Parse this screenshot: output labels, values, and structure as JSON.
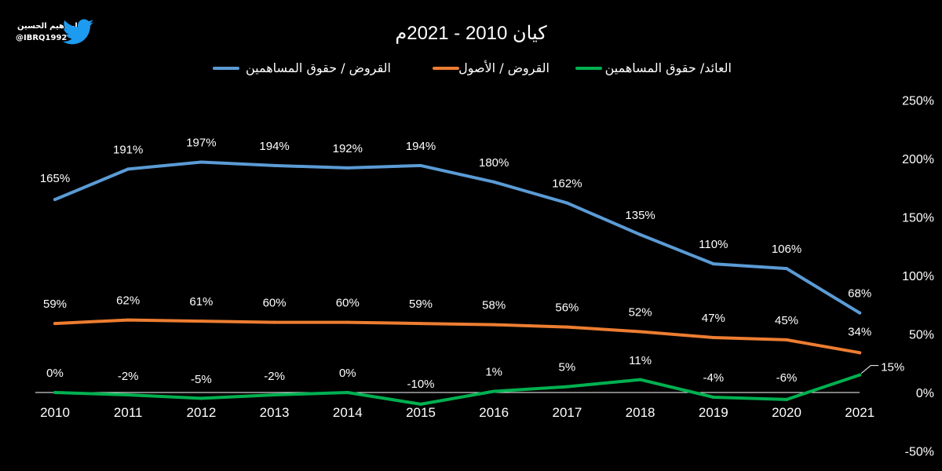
{
  "branding": {
    "author_name": "إبراهيم الحسين",
    "handle": "@IBRQ1992",
    "logo_icon": "twitter-bird-icon",
    "logo_color": "#1d9bf0"
  },
  "chart_data": {
    "type": "line",
    "title": "كيان 2010 - 2021م",
    "background": "#000000",
    "categories": [
      "2010",
      "2011",
      "2012",
      "2013",
      "2014",
      "2015",
      "2016",
      "2017",
      "2018",
      "2019",
      "2020",
      "2021"
    ],
    "y_axis": {
      "side": "right",
      "min": -50,
      "max": 250,
      "step": 50,
      "tick_labels": [
        "-50%",
        "0%",
        "50%",
        "100%",
        "150%",
        "200%",
        "250%"
      ]
    },
    "grid": false,
    "legend": {
      "position": "top"
    },
    "series": [
      {
        "name": "القروض / حقوق المساهمين",
        "color": "#5b9bd5",
        "values": [
          165,
          191,
          197,
          194,
          192,
          194,
          180,
          162,
          135,
          110,
          106,
          68
        ],
        "labels": [
          "165%",
          "191%",
          "197%",
          "194%",
          "192%",
          "194%",
          "180%",
          "162%",
          "135%",
          "110%",
          "106%",
          "68%"
        ]
      },
      {
        "name": "القروض / الأصول",
        "color": "#ed7d31",
        "values": [
          59,
          62,
          61,
          60,
          60,
          59,
          58,
          56,
          52,
          47,
          45,
          34
        ],
        "labels": [
          "59%",
          "62%",
          "61%",
          "60%",
          "60%",
          "59%",
          "58%",
          "56%",
          "52%",
          "47%",
          "45%",
          "34%"
        ]
      },
      {
        "name": "العائد/ حقوق المساهمين",
        "color": "#00b050",
        "values": [
          0,
          -2,
          -5,
          -2,
          0,
          -10,
          1,
          5,
          11,
          -4,
          -6,
          15
        ],
        "labels": [
          "0%",
          "-2%",
          "-5%",
          "-2%",
          "0%",
          "-10%",
          "1%",
          "5%",
          "11%",
          "-4%",
          "-6%",
          "15%"
        ]
      }
    ]
  }
}
